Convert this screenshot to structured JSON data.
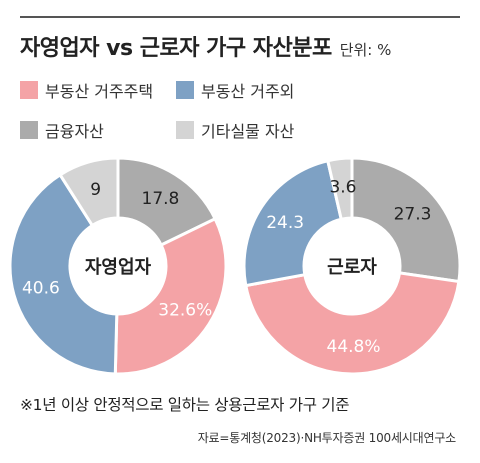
{
  "title": "자영업자 vs 근로자 가구 자산분포",
  "unit": "단위: %",
  "legend": [
    {
      "label": "부동산 거주주택",
      "color": "#f4a3a6"
    },
    {
      "label": "부동산 거주외",
      "color": "#7ea1c4"
    },
    {
      "label": "금융자산",
      "color": "#ababab"
    },
    {
      "label": "기타실물 자산",
      "color": "#d4d4d4"
    }
  ],
  "chart_data": [
    {
      "type": "pie",
      "title": "자영업자",
      "categories": [
        "부동산 거주주택",
        "부동산 거주외",
        "금융자산",
        "기타실물 자산"
      ],
      "values": [
        32.6,
        40.6,
        17.8,
        9
      ],
      "labels": [
        "32.6%",
        "40.6",
        "17.8",
        "9"
      ],
      "colors": [
        "#f4a3a6",
        "#7ea1c4",
        "#ababab",
        "#d4d4d4"
      ]
    },
    {
      "type": "pie",
      "title": "근로자",
      "categories": [
        "부동산 거주주택",
        "부동산 거주외",
        "금융자산",
        "기타실물 자산"
      ],
      "values": [
        44.8,
        24.3,
        27.3,
        3.6
      ],
      "labels": [
        "44.8%",
        "24.3",
        "27.3",
        "3.6"
      ],
      "colors": [
        "#f4a3a6",
        "#7ea1c4",
        "#ababab",
        "#d4d4d4"
      ]
    }
  ],
  "footnote": "※1년 이상 안정적으로 일하는 상용근로자 가구 기준",
  "source": "자료=통계청(2023)·NH투자증권 100세시대연구소"
}
